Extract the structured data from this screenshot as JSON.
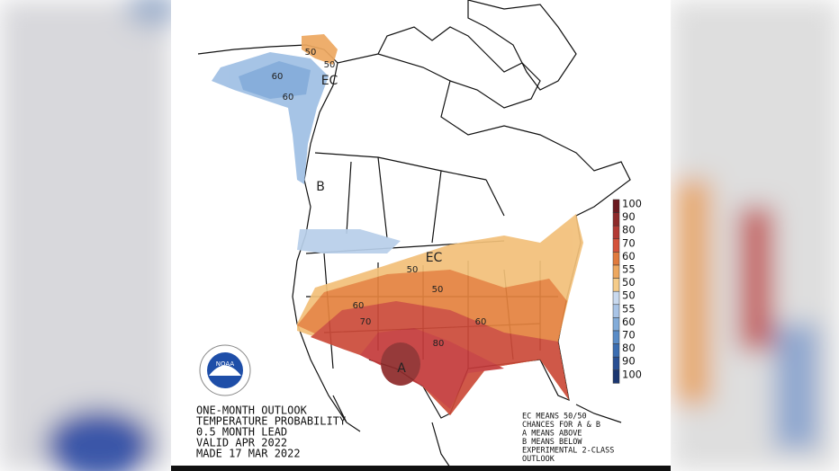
{
  "map_labels": [
    "50",
    "50",
    "EC",
    "60",
    "60",
    "B",
    "EC",
    "50",
    "50",
    "60",
    "70",
    "80",
    "60",
    "A"
  ],
  "logo": "NOAA",
  "title_block": [
    "ONE-MONTH OUTLOOK",
    "TEMPERATURE PROBABILITY",
    "0.5 MONTH LEAD",
    "VALID APR 2022",
    "MADE 17 MAR 2022"
  ],
  "notes": [
    "EC MEANS 50/50",
    "CHANCES FOR A & B",
    "A MEANS ABOVE",
    "B MEANS BELOW",
    "EXPERIMENTAL 2-CLASS",
    "OUTLOOK"
  ],
  "legend": [
    {
      "label": 100,
      "color": "#6b1a1f"
    },
    {
      "label": 90,
      "color": "#8e2a2a"
    },
    {
      "label": 80,
      "color": "#b33a35"
    },
    {
      "label": 70,
      "color": "#d4523a"
    },
    {
      "label": 60,
      "color": "#e07a3c"
    },
    {
      "label": 55,
      "color": "#eda860"
    },
    {
      "label": 50,
      "color": "#f5cc8a"
    },
    {
      "label": 50,
      "color": "#c9d9ee"
    },
    {
      "label": 55,
      "color": "#a9c4e6"
    },
    {
      "label": 60,
      "color": "#83acd9"
    },
    {
      "label": 70,
      "color": "#5a8cc7"
    },
    {
      "label": 80,
      "color": "#3b6db1"
    },
    {
      "label": 90,
      "color": "#284f93"
    },
    {
      "label": 100,
      "color": "#1b3670"
    }
  ]
}
